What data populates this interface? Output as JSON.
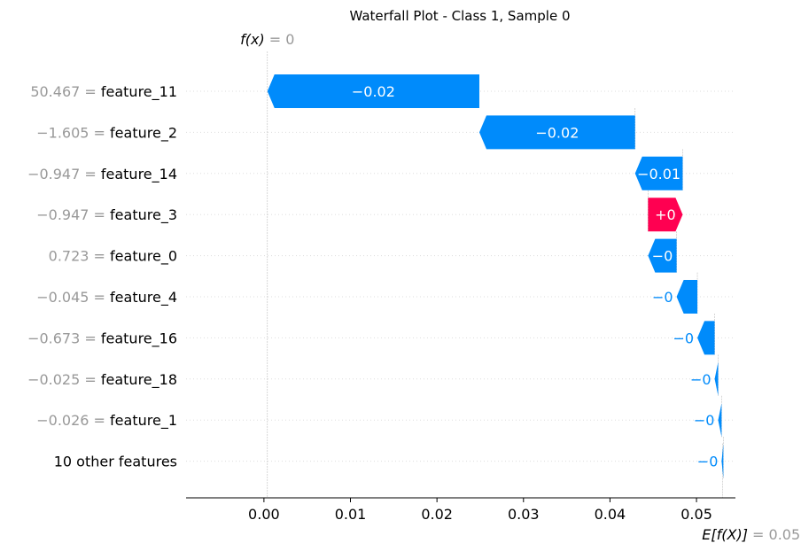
{
  "chart_data": {
    "type": "waterfall",
    "title": "Waterfall Plot - Class 1, Sample 0",
    "fx_label": {
      "name": "f(x)",
      "eq": "= 0"
    },
    "ex_label": {
      "name": "E[f(X)]",
      "eq": "= 0.053"
    },
    "xlim": [
      -0.009,
      0.0545
    ],
    "x_ticks": [
      0.0,
      0.01,
      0.02,
      0.03,
      0.04,
      0.05
    ],
    "x_tick_labels": [
      "0.00",
      "0.01",
      "0.02",
      "0.03",
      "0.04",
      "0.05"
    ],
    "base_value": 0.053,
    "features": [
      {
        "value_label": "50.467",
        "name": "feature_11",
        "start": 0.0249,
        "end": 0.0004,
        "label": "−0.02",
        "sign": "neg"
      },
      {
        "value_label": "−1.605",
        "name": "feature_2",
        "start": 0.0429,
        "end": 0.0249,
        "label": "−0.02",
        "sign": "neg"
      },
      {
        "value_label": "−0.947",
        "name": "feature_14",
        "start": 0.0484,
        "end": 0.0429,
        "label": "−0.01",
        "sign": "neg"
      },
      {
        "value_label": "−0.947",
        "name": "feature_3",
        "start": 0.0444,
        "end": 0.0484,
        "label": "+0",
        "sign": "pos"
      },
      {
        "value_label": "0.723",
        "name": "feature_0",
        "start": 0.0477,
        "end": 0.0444,
        "label": "−0",
        "sign": "neg"
      },
      {
        "value_label": "−0.045",
        "name": "feature_4",
        "start": 0.0501,
        "end": 0.0477,
        "label": "−0",
        "sign": "neg"
      },
      {
        "value_label": "−0.673",
        "name": "feature_16",
        "start": 0.0521,
        "end": 0.0501,
        "label": "−0",
        "sign": "neg"
      },
      {
        "value_label": "−0.025",
        "name": "feature_18",
        "start": 0.0525,
        "end": 0.0521,
        "label": "−0",
        "sign": "neg"
      },
      {
        "value_label": "−0.026",
        "name": "feature_1",
        "start": 0.0529,
        "end": 0.0525,
        "label": "−0",
        "sign": "neg"
      },
      {
        "value_label": "",
        "name": "10 other features",
        "start": 0.0531,
        "end": 0.0529,
        "label": "−0",
        "sign": "neg"
      }
    ],
    "colors": {
      "negative": "#008bfb",
      "positive": "#ff0051",
      "muted": "#999999",
      "text": "#000000"
    }
  }
}
